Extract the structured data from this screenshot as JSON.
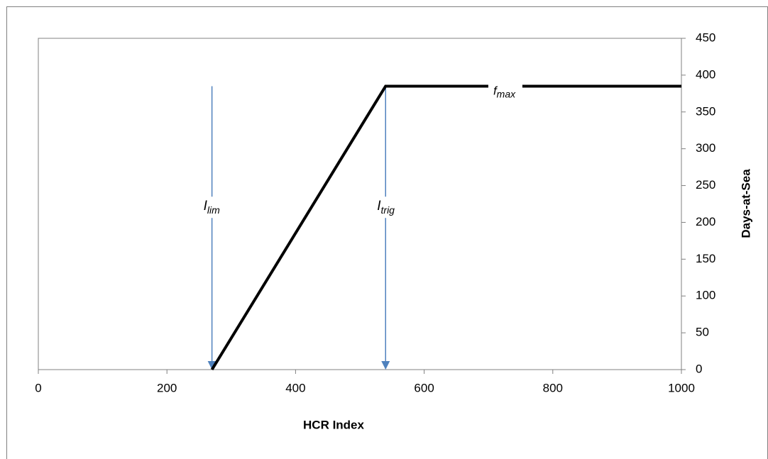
{
  "chart_data": {
    "type": "line",
    "x_label": "HCR Index",
    "y_label": "Days-at-Sea",
    "y_axis_side": "right",
    "x": [
      270,
      540,
      1000
    ],
    "series": [
      {
        "name": null,
        "color": "#000000",
        "values": [
          0,
          385,
          385
        ]
      }
    ],
    "xlim": [
      0,
      1000
    ],
    "xticks": [
      0,
      200,
      400,
      600,
      800,
      1000
    ],
    "ylim": [
      0,
      450
    ],
    "yticks": [
      0,
      50,
      100,
      150,
      200,
      250,
      300,
      350,
      400,
      450
    ],
    "grid": false,
    "arrows": [
      {
        "x": 270,
        "from": 385,
        "to": 0,
        "label": "I",
        "sub": "lim",
        "color": "#4f81bd"
      },
      {
        "x": 540,
        "from": 385,
        "to": 0,
        "label": "I",
        "sub": "trig",
        "color": "#4f81bd"
      }
    ],
    "line_label": {
      "label": "f",
      "sub": "max"
    }
  }
}
